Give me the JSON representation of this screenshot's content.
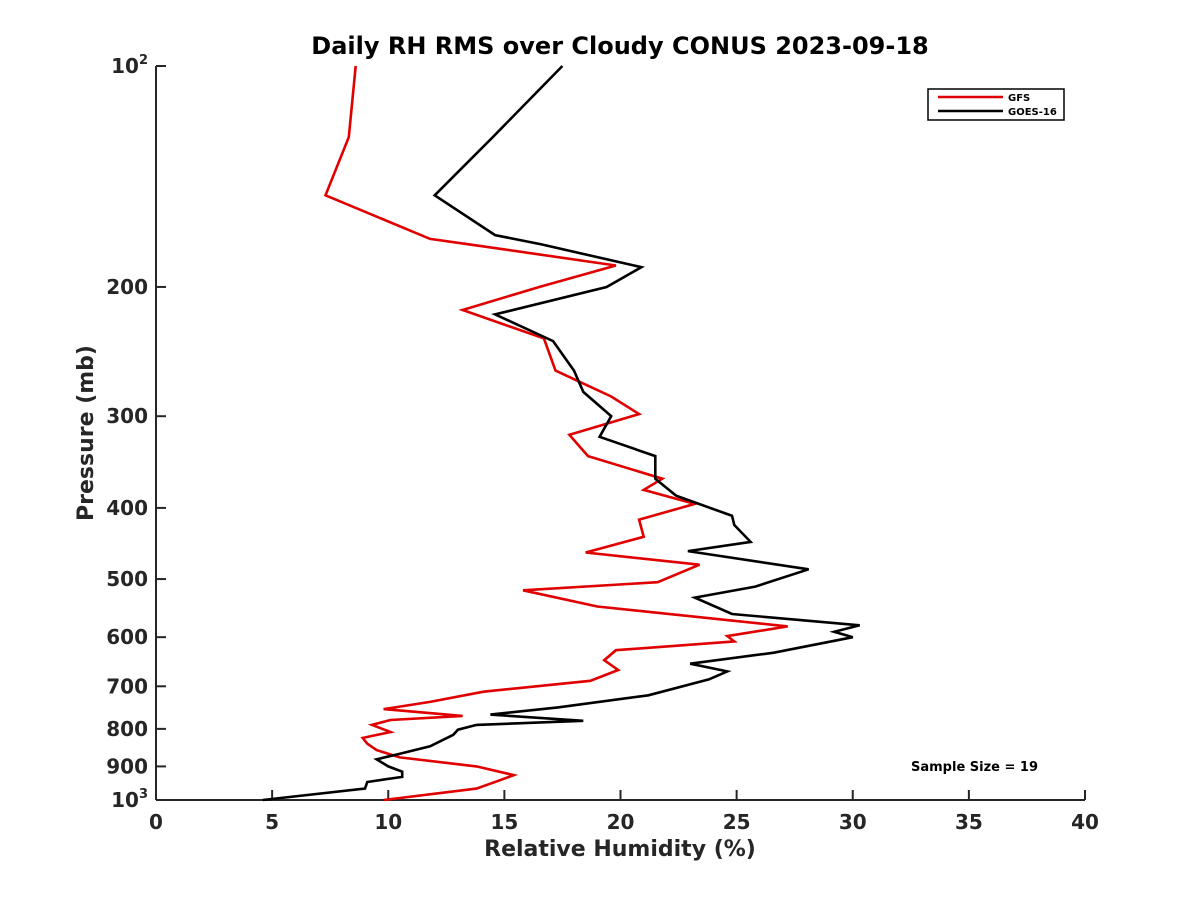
{
  "chart_data": {
    "type": "line",
    "title": "Daily RH RMS over Cloudy CONUS 2023-09-18",
    "xlabel": "Relative Humidity (%)",
    "ylabel": "Pressure (mb)",
    "xlim": [
      0,
      40
    ],
    "ylim": [
      100,
      1000
    ],
    "y_scale": "log",
    "y_reversed": true,
    "grid": false,
    "x_ticks": [
      0,
      5,
      10,
      15,
      20,
      25,
      30,
      35,
      40
    ],
    "x_tick_labels": [
      "0",
      "5",
      "10",
      "15",
      "20",
      "25",
      "30",
      "35",
      "40"
    ],
    "y_ticks": [
      {
        "value": 100,
        "base": "10",
        "sup": "2"
      },
      {
        "value": 200,
        "base": "200",
        "sup": ""
      },
      {
        "value": 300,
        "base": "300",
        "sup": ""
      },
      {
        "value": 400,
        "base": "400",
        "sup": ""
      },
      {
        "value": 500,
        "base": "500",
        "sup": ""
      },
      {
        "value": 600,
        "base": "600",
        "sup": ""
      },
      {
        "value": 700,
        "base": "700",
        "sup": ""
      },
      {
        "value": 800,
        "base": "800",
        "sup": ""
      },
      {
        "value": 900,
        "base": "900",
        "sup": ""
      },
      {
        "value": 1000,
        "base": "10",
        "sup": "3"
      }
    ],
    "legend": {
      "placement": "top-right",
      "entries": [
        {
          "name": "GFS",
          "color": "#e00000"
        },
        {
          "name": "GOES-16",
          "color": "#000000"
        }
      ]
    },
    "annotation": "Sample Size = 19",
    "series": [
      {
        "name": "GFS",
        "color": "#e00000",
        "points": [
          [
            8.6,
            100
          ],
          [
            8.3,
            125
          ],
          [
            7.3,
            150
          ],
          [
            11.8,
            172
          ],
          [
            13.5,
            175
          ],
          [
            19.8,
            187
          ],
          [
            16.5,
            200
          ],
          [
            13.2,
            215
          ],
          [
            16.7,
            235
          ],
          [
            17.2,
            260
          ],
          [
            19.6,
            282
          ],
          [
            20.8,
            298
          ],
          [
            17.8,
            318
          ],
          [
            18.6,
            340
          ],
          [
            21.8,
            365
          ],
          [
            21.0,
            378
          ],
          [
            23.2,
            395
          ],
          [
            20.8,
            415
          ],
          [
            21.0,
            438
          ],
          [
            18.5,
            460
          ],
          [
            23.4,
            478
          ],
          [
            21.6,
            505
          ],
          [
            15.8,
            518
          ],
          [
            19.0,
            545
          ],
          [
            27.2,
            580
          ],
          [
            24.6,
            598
          ],
          [
            24.9,
            608
          ],
          [
            19.8,
            625
          ],
          [
            19.3,
            645
          ],
          [
            19.9,
            665
          ],
          [
            18.7,
            688
          ],
          [
            14.1,
            712
          ],
          [
            11.8,
            735
          ],
          [
            9.8,
            752
          ],
          [
            13.2,
            768
          ],
          [
            10.1,
            778
          ],
          [
            9.3,
            790
          ],
          [
            10.1,
            808
          ],
          [
            8.9,
            823
          ],
          [
            9.1,
            838
          ],
          [
            9.5,
            855
          ],
          [
            10.5,
            875
          ],
          [
            13.8,
            900
          ],
          [
            15.4,
            925
          ],
          [
            14.8,
            940
          ],
          [
            13.8,
            965
          ],
          [
            9.8,
            1000
          ]
        ]
      },
      {
        "name": "GOES-16",
        "color": "#000000",
        "points": [
          [
            17.5,
            100
          ],
          [
            14.5,
            125
          ],
          [
            12.0,
            150
          ],
          [
            14.6,
            170
          ],
          [
            16.6,
            175
          ],
          [
            20.9,
            188
          ],
          [
            19.4,
            200
          ],
          [
            14.6,
            218
          ],
          [
            17.1,
            237
          ],
          [
            18.0,
            260
          ],
          [
            18.4,
            278
          ],
          [
            19.6,
            300
          ],
          [
            19.1,
            320
          ],
          [
            21.5,
            340
          ],
          [
            21.5,
            365
          ],
          [
            22.4,
            385
          ],
          [
            24.8,
            410
          ],
          [
            24.9,
            422
          ],
          [
            25.6,
            445
          ],
          [
            22.9,
            458
          ],
          [
            28.1,
            485
          ],
          [
            25.8,
            512
          ],
          [
            23.2,
            530
          ],
          [
            24.8,
            558
          ],
          [
            30.3,
            578
          ],
          [
            29.2,
            590
          ],
          [
            30.0,
            600
          ],
          [
            26.6,
            630
          ],
          [
            23.0,
            652
          ],
          [
            24.6,
            668
          ],
          [
            23.8,
            685
          ],
          [
            21.2,
            720
          ],
          [
            17.3,
            748
          ],
          [
            14.4,
            765
          ],
          [
            18.4,
            780
          ],
          [
            13.8,
            790
          ],
          [
            13.0,
            802
          ],
          [
            12.8,
            815
          ],
          [
            11.8,
            845
          ],
          [
            10.5,
            865
          ],
          [
            9.5,
            880
          ],
          [
            10.0,
            900
          ],
          [
            10.6,
            915
          ],
          [
            10.6,
            930
          ],
          [
            9.1,
            945
          ],
          [
            9.0,
            965
          ],
          [
            4.6,
            1000
          ]
        ]
      }
    ]
  }
}
